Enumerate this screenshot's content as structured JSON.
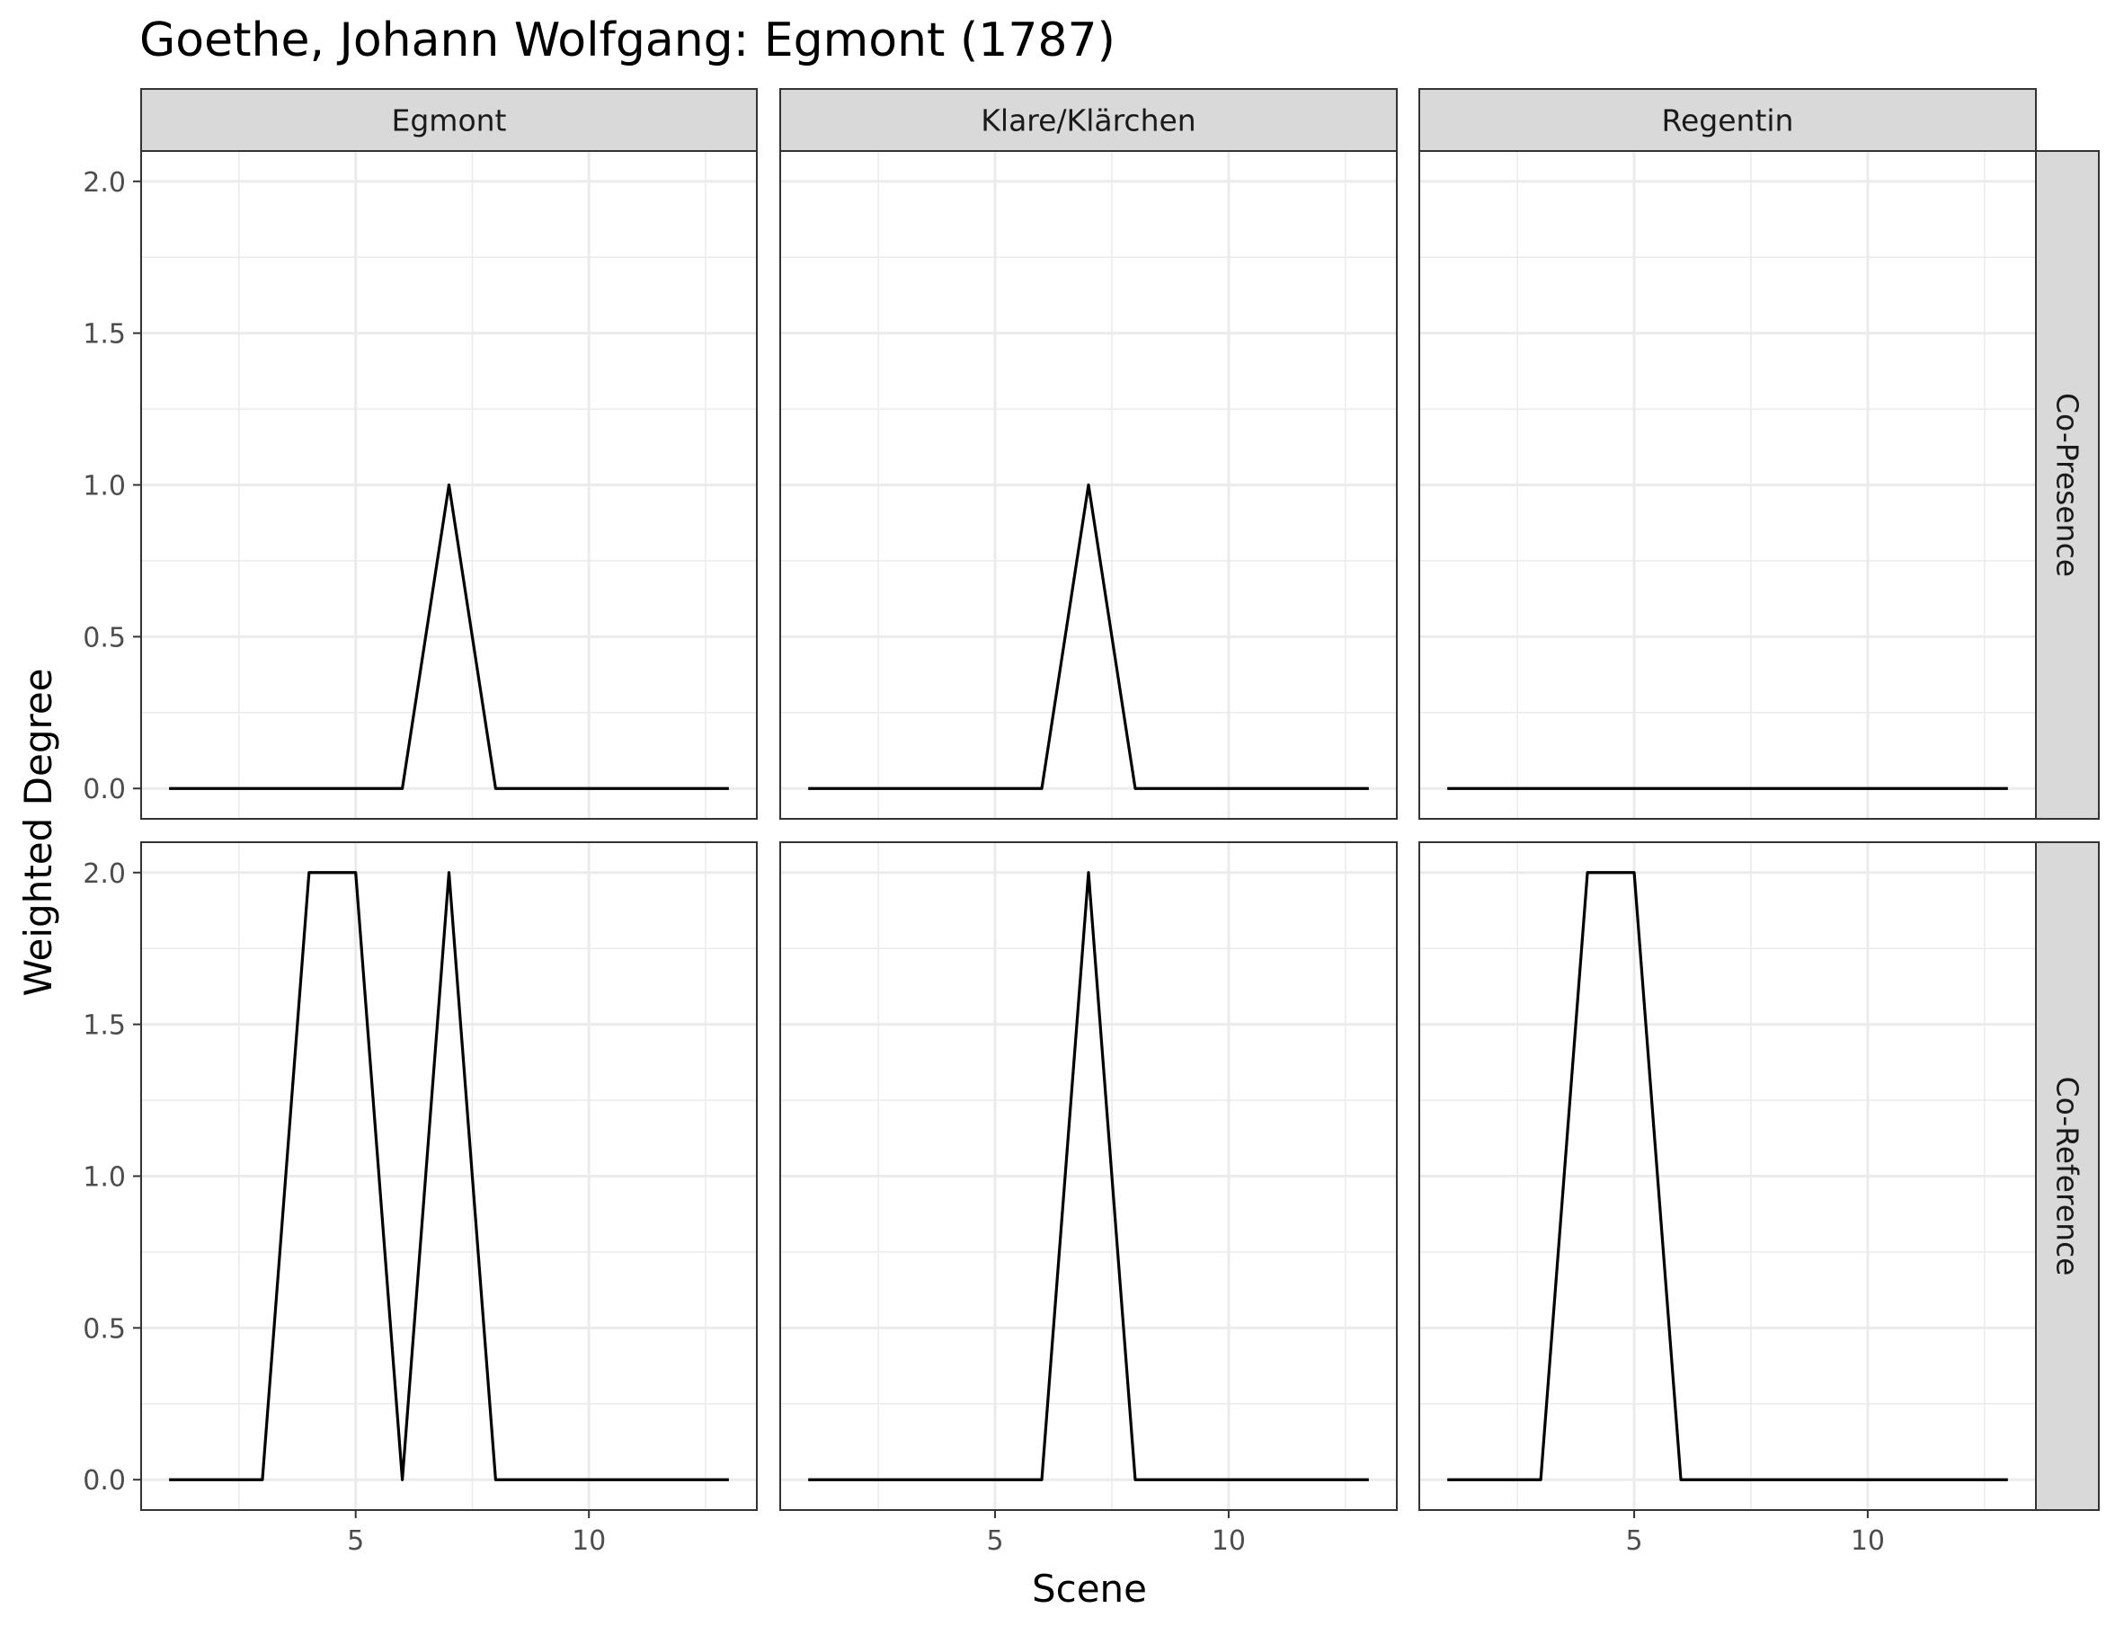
{
  "chart_data": {
    "type": "line",
    "title": "Goethe, Johann Wolfgang: Egmont (1787)",
    "xlabel": "Scene",
    "ylabel": "Weighted Degree",
    "x": [
      1,
      2,
      3,
      4,
      5,
      6,
      7,
      8,
      9,
      10,
      11,
      12,
      13
    ],
    "xlim": [
      0.4,
      13.6
    ],
    "ylim": [
      -0.1,
      2.1
    ],
    "xticks": [
      5,
      10
    ],
    "yticks": [
      0.0,
      0.5,
      1.0,
      1.5,
      2.0
    ],
    "ytick_labels": [
      "0.0",
      "0.5",
      "1.0",
      "1.5",
      "2.0"
    ],
    "xtick_labels": [
      "5",
      "10"
    ],
    "grid": true,
    "columns": [
      "Egmont",
      "Klare/Klärchen",
      "Regentin"
    ],
    "rows": [
      "Co-Presence",
      "Co-Reference"
    ],
    "colors": {
      "line": "#000000",
      "strip": "#d9d9d9",
      "grid": "#ebebeb"
    },
    "panels": [
      {
        "column": "Egmont",
        "row": "Co-Presence",
        "values": [
          0,
          0,
          0,
          0,
          0,
          0,
          1,
          0,
          0,
          0,
          0,
          0,
          0
        ]
      },
      {
        "column": "Klare/Klärchen",
        "row": "Co-Presence",
        "values": [
          0,
          0,
          0,
          0,
          0,
          0,
          1,
          0,
          0,
          0,
          0,
          0,
          0
        ]
      },
      {
        "column": "Regentin",
        "row": "Co-Presence",
        "values": [
          0,
          0,
          0,
          0,
          0,
          0,
          0,
          0,
          0,
          0,
          0,
          0,
          0
        ]
      },
      {
        "column": "Egmont",
        "row": "Co-Reference",
        "values": [
          0,
          0,
          0,
          2,
          2,
          0,
          2,
          0,
          0,
          0,
          0,
          0,
          0
        ]
      },
      {
        "column": "Klare/Klärchen",
        "row": "Co-Reference",
        "values": [
          0,
          0,
          0,
          0,
          0,
          0,
          2,
          0,
          0,
          0,
          0,
          0,
          0
        ]
      },
      {
        "column": "Regentin",
        "row": "Co-Reference",
        "values": [
          0,
          0,
          0,
          2,
          2,
          0,
          0,
          0,
          0,
          0,
          0,
          0,
          0
        ]
      }
    ]
  }
}
